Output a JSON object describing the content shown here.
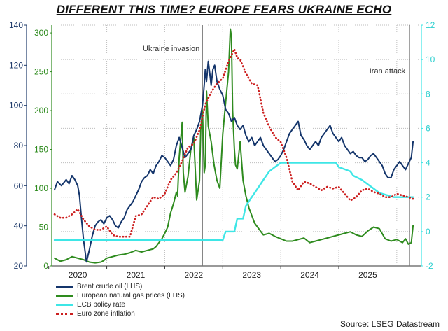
{
  "chart_data": {
    "type": "line",
    "title": "DIFFERENT THIS TIME? EUROPE FEARS UKRAINE ECHO",
    "source": "Source: LSEG Datastream",
    "x_tick_labels": [
      "2020",
      "2021",
      "2022",
      "2023",
      "2024",
      "2025"
    ],
    "x_range": [
      2019.6,
      2025.9
    ],
    "axes": {
      "left_brent": {
        "ylim": [
          20,
          140
        ],
        "ticks": [
          "20",
          "40",
          "60",
          "80",
          "100",
          "120",
          "140"
        ],
        "color": "#1f3b6b"
      },
      "left_gas": {
        "ylim": [
          0,
          310
        ],
        "ticks": [
          "0",
          "50",
          "100",
          "150",
          "200",
          "250",
          "300"
        ],
        "color": "#2e8b1e"
      },
      "right_rates": {
        "ylim": [
          -2,
          12
        ],
        "ticks": [
          "-2",
          "0",
          "2",
          "4",
          "6",
          "8",
          "10",
          "12"
        ],
        "color": "#3ee6e6"
      }
    },
    "annotations": [
      {
        "label": "Ukraine invasion",
        "x": 2022.15
      },
      {
        "label": "Iran attack",
        "x": 2025.72
      }
    ],
    "series": [
      {
        "name": "Brent crude oil (LHS)",
        "axis": "left_brent",
        "color": "#14356b",
        "style": "solid",
        "x": [
          2019.6,
          2019.65,
          2019.72,
          2019.8,
          2019.85,
          2019.9,
          2019.95,
          2020.0,
          2020.03,
          2020.06,
          2020.1,
          2020.15,
          2020.2,
          2020.25,
          2020.3,
          2020.35,
          2020.4,
          2020.45,
          2020.5,
          2020.55,
          2020.6,
          2020.65,
          2020.7,
          2020.75,
          2020.8,
          2020.85,
          2020.9,
          2020.95,
          2021.0,
          2021.05,
          2021.1,
          2021.15,
          2021.2,
          2021.25,
          2021.3,
          2021.35,
          2021.4,
          2021.45,
          2021.5,
          2021.55,
          2021.6,
          2021.65,
          2021.7,
          2021.75,
          2021.8,
          2021.85,
          2021.9,
          2021.95,
          2022.0,
          2022.05,
          2022.1,
          2022.15,
          2022.18,
          2022.2,
          2022.22,
          2022.25,
          2022.28,
          2022.3,
          2022.33,
          2022.36,
          2022.4,
          2022.45,
          2022.5,
          2022.55,
          2022.6,
          2022.65,
          2022.7,
          2022.75,
          2022.8,
          2022.85,
          2022.9,
          2022.95,
          2023.0,
          2023.05,
          2023.1,
          2023.15,
          2023.2,
          2023.25,
          2023.3,
          2023.35,
          2023.4,
          2023.45,
          2023.5,
          2023.55,
          2023.6,
          2023.65,
          2023.7,
          2023.75,
          2023.8,
          2023.85,
          2023.9,
          2023.95,
          2024.0,
          2024.05,
          2024.1,
          2024.15,
          2024.2,
          2024.25,
          2024.3,
          2024.35,
          2024.4,
          2024.45,
          2024.5,
          2024.55,
          2024.6,
          2024.65,
          2024.7,
          2024.75,
          2024.8,
          2024.85,
          2024.9,
          2024.95,
          2025.0,
          2025.05,
          2025.1,
          2025.15,
          2025.2,
          2025.25,
          2025.3,
          2025.35,
          2025.4,
          2025.45,
          2025.5,
          2025.55,
          2025.6,
          2025.65,
          2025.7,
          2025.75,
          2025.78
        ],
        "y": [
          58,
          62,
          60,
          63,
          61,
          65,
          63,
          60,
          55,
          45,
          33,
          22,
          28,
          35,
          40,
          42,
          43,
          41,
          44,
          45,
          43,
          40,
          39,
          42,
          44,
          48,
          50,
          52,
          55,
          58,
          62,
          64,
          65,
          68,
          66,
          70,
          72,
          75,
          74,
          72,
          70,
          73,
          80,
          84,
          79,
          74,
          76,
          78,
          85,
          88,
          92,
          100,
          110,
          118,
          112,
          122,
          115,
          110,
          118,
          120,
          112,
          108,
          105,
          98,
          96,
          92,
          94,
          90,
          88,
          90,
          85,
          82,
          84,
          80,
          82,
          84,
          80,
          78,
          76,
          74,
          72,
          73,
          75,
          78,
          82,
          86,
          88,
          90,
          92,
          85,
          83,
          80,
          78,
          80,
          82,
          80,
          84,
          86,
          88,
          90,
          86,
          84,
          82,
          84,
          80,
          78,
          76,
          77,
          75,
          74,
          74,
          72,
          73,
          75,
          76,
          74,
          72,
          70,
          66,
          64,
          64,
          68,
          70,
          72,
          70,
          68,
          71,
          74,
          82
        ]
      },
      {
        "name": "European natural gas prices (LHS)",
        "axis": "left_gas",
        "color": "#2e8b1e",
        "style": "solid",
        "x": [
          2019.6,
          2019.65,
          2019.7,
          2019.8,
          2019.9,
          2020.0,
          2020.1,
          2020.2,
          2020.3,
          2020.4,
          2020.45,
          2020.5,
          2020.6,
          2020.7,
          2020.8,
          2020.9,
          2021.0,
          2021.1,
          2021.2,
          2021.3,
          2021.35,
          2021.4,
          2021.45,
          2021.5,
          2021.55,
          2021.6,
          2021.65,
          2021.7,
          2021.72,
          2021.75,
          2021.8,
          2021.82,
          2021.85,
          2021.9,
          2021.95,
          2022.0,
          2022.05,
          2022.1,
          2022.12,
          2022.15,
          2022.18,
          2022.2,
          2022.22,
          2022.25,
          2022.3,
          2022.35,
          2022.4,
          2022.45,
          2022.5,
          2022.55,
          2022.6,
          2022.63,
          2022.65,
          2022.67,
          2022.7,
          2022.72,
          2022.75,
          2022.8,
          2022.85,
          2022.9,
          2022.95,
          2023.0,
          2023.05,
          2023.1,
          2023.15,
          2023.2,
          2023.3,
          2023.4,
          2023.5,
          2023.6,
          2023.7,
          2023.8,
          2023.9,
          2024.0,
          2024.1,
          2024.2,
          2024.3,
          2024.4,
          2024.5,
          2024.6,
          2024.7,
          2024.8,
          2024.9,
          2025.0,
          2025.1,
          2025.2,
          2025.3,
          2025.4,
          2025.5,
          2025.55,
          2025.6,
          2025.65,
          2025.7,
          2025.75,
          2025.78
        ],
        "y": [
          10,
          8,
          6,
          8,
          12,
          10,
          8,
          5,
          4,
          5,
          7,
          10,
          12,
          14,
          15,
          17,
          20,
          18,
          20,
          22,
          25,
          30,
          35,
          42,
          50,
          68,
          80,
          95,
          90,
          140,
          185,
          120,
          95,
          115,
          150,
          165,
          85,
          110,
          175,
          200,
          120,
          130,
          225,
          180,
          160,
          130,
          110,
          100,
          170,
          210,
          250,
          305,
          295,
          200,
          150,
          130,
          125,
          160,
          110,
          90,
          75,
          65,
          55,
          50,
          45,
          40,
          42,
          38,
          35,
          32,
          32,
          34,
          36,
          30,
          32,
          34,
          36,
          38,
          40,
          42,
          44,
          40,
          38,
          45,
          50,
          48,
          35,
          32,
          34,
          32,
          30,
          35,
          28,
          30,
          52
        ]
      },
      {
        "name": "ECB policy rate",
        "axis": "right_rates",
        "color": "#3ee6e6",
        "style": "solid",
        "x": [
          2019.6,
          2022.5,
          2022.55,
          2022.7,
          2022.75,
          2022.85,
          2022.9,
          2023.0,
          2023.1,
          2023.2,
          2023.3,
          2023.4,
          2023.5,
          2023.6,
          2023.7,
          2024.0,
          2024.1,
          2024.45,
          2024.5,
          2024.7,
          2024.75,
          2024.9,
          2025.0,
          2025.1,
          2025.2,
          2025.45,
          2025.5,
          2025.78
        ],
        "y": [
          -0.5,
          -0.5,
          0.0,
          0.0,
          0.75,
          0.75,
          1.5,
          2.0,
          2.5,
          3.0,
          3.5,
          3.75,
          4.0,
          4.0,
          4.0,
          4.0,
          4.0,
          4.0,
          3.75,
          3.5,
          3.25,
          3.0,
          2.75,
          2.5,
          2.25,
          2.0,
          2.0,
          2.0
        ]
      },
      {
        "name": "Euro zone inflation",
        "axis": "right_rates",
        "color": "#cc1f1f",
        "style": "dotted",
        "x": [
          2019.6,
          2019.7,
          2019.8,
          2019.9,
          2020.0,
          2020.1,
          2020.2,
          2020.3,
          2020.4,
          2020.5,
          2020.6,
          2020.7,
          2020.8,
          2020.9,
          2021.0,
          2021.1,
          2021.2,
          2021.3,
          2021.4,
          2021.5,
          2021.6,
          2021.7,
          2021.8,
          2021.9,
          2022.0,
          2022.1,
          2022.2,
          2022.3,
          2022.4,
          2022.5,
          2022.6,
          2022.7,
          2022.75,
          2022.8,
          2022.9,
          2023.0,
          2023.1,
          2023.2,
          2023.3,
          2023.4,
          2023.5,
          2023.6,
          2023.7,
          2023.8,
          2023.9,
          2024.0,
          2024.1,
          2024.2,
          2024.3,
          2024.4,
          2024.5,
          2024.6,
          2024.7,
          2024.8,
          2024.9,
          2025.0,
          2025.1,
          2025.2,
          2025.3,
          2025.4,
          2025.5,
          2025.6,
          2025.7,
          2025.78
        ],
        "y": [
          1.0,
          0.8,
          0.8,
          1.0,
          1.3,
          0.7,
          0.3,
          0.1,
          0.1,
          0.3,
          -0.2,
          -0.3,
          -0.3,
          -0.3,
          0.9,
          1.0,
          1.5,
          2.0,
          1.9,
          2.2,
          3.0,
          3.4,
          4.1,
          4.9,
          5.1,
          5.9,
          7.4,
          8.1,
          8.6,
          8.9,
          9.9,
          10.6,
          10.1,
          10.0,
          9.2,
          8.6,
          8.5,
          6.9,
          6.1,
          5.5,
          5.2,
          4.3,
          2.9,
          2.4,
          2.9,
          2.8,
          2.6,
          2.4,
          2.6,
          2.5,
          2.6,
          2.2,
          1.8,
          2.0,
          2.4,
          2.5,
          2.3,
          2.2,
          2.0,
          2.0,
          2.2,
          2.1,
          2.0,
          1.9
        ]
      }
    ],
    "legend": [
      "Brent crude oil (LHS)",
      "European natural gas prices (LHS)",
      "ECB policy rate",
      "Euro zone inflation"
    ]
  }
}
